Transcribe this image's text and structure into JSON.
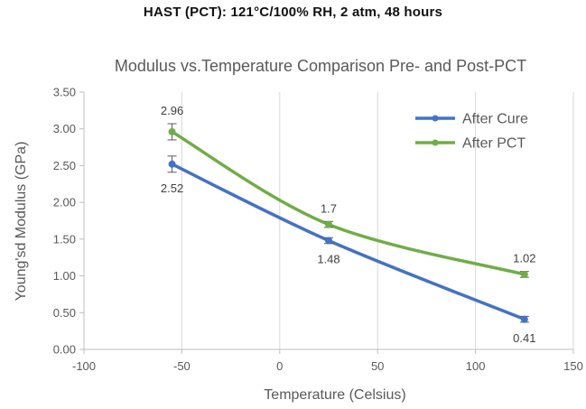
{
  "header": {
    "text": "HAST (PCT): 121°C/100% RH, 2 atm, 48 hours"
  },
  "chart_data": {
    "type": "line",
    "title": "Modulus vs.Temperature Comparison Pre- and Post-PCT",
    "xlabel": "Temperature (Celsius)",
    "ylabel": "Young'sd Modulus (GPa)",
    "xlim": [
      -100,
      150
    ],
    "ylim": [
      0,
      3.5
    ],
    "xticks": [
      -100,
      -50,
      0,
      50,
      100,
      150
    ],
    "yticks": [
      0,
      0.5,
      1,
      1.5,
      2,
      2.5,
      3,
      3.5
    ],
    "x_tick_labels": [
      "-100",
      "-50",
      "0",
      "50",
      "100",
      "150"
    ],
    "y_tick_labels": [
      "0.00",
      "0.50",
      "1.00",
      "1.50",
      "2.00",
      "2.50",
      "3.00",
      "3.50"
    ],
    "grid": "vertical",
    "legend_position": "top-right",
    "series": [
      {
        "name": "After Cure",
        "color": "#4472C4",
        "x": [
          -55,
          25,
          125
        ],
        "y": [
          2.52,
          1.48,
          0.41
        ],
        "error": [
          0.11,
          0.04,
          0.04
        ],
        "labels": [
          "2.52",
          "1.48",
          "0.41"
        ],
        "label_position": "below"
      },
      {
        "name": "After PCT",
        "color": "#70AD47",
        "x": [
          -55,
          25,
          125
        ],
        "y": [
          2.96,
          1.7,
          1.02
        ],
        "error": [
          0.11,
          0.04,
          0.04
        ],
        "labels": [
          "2.96",
          "1.7",
          "1.02"
        ],
        "label_position": "above"
      }
    ]
  }
}
